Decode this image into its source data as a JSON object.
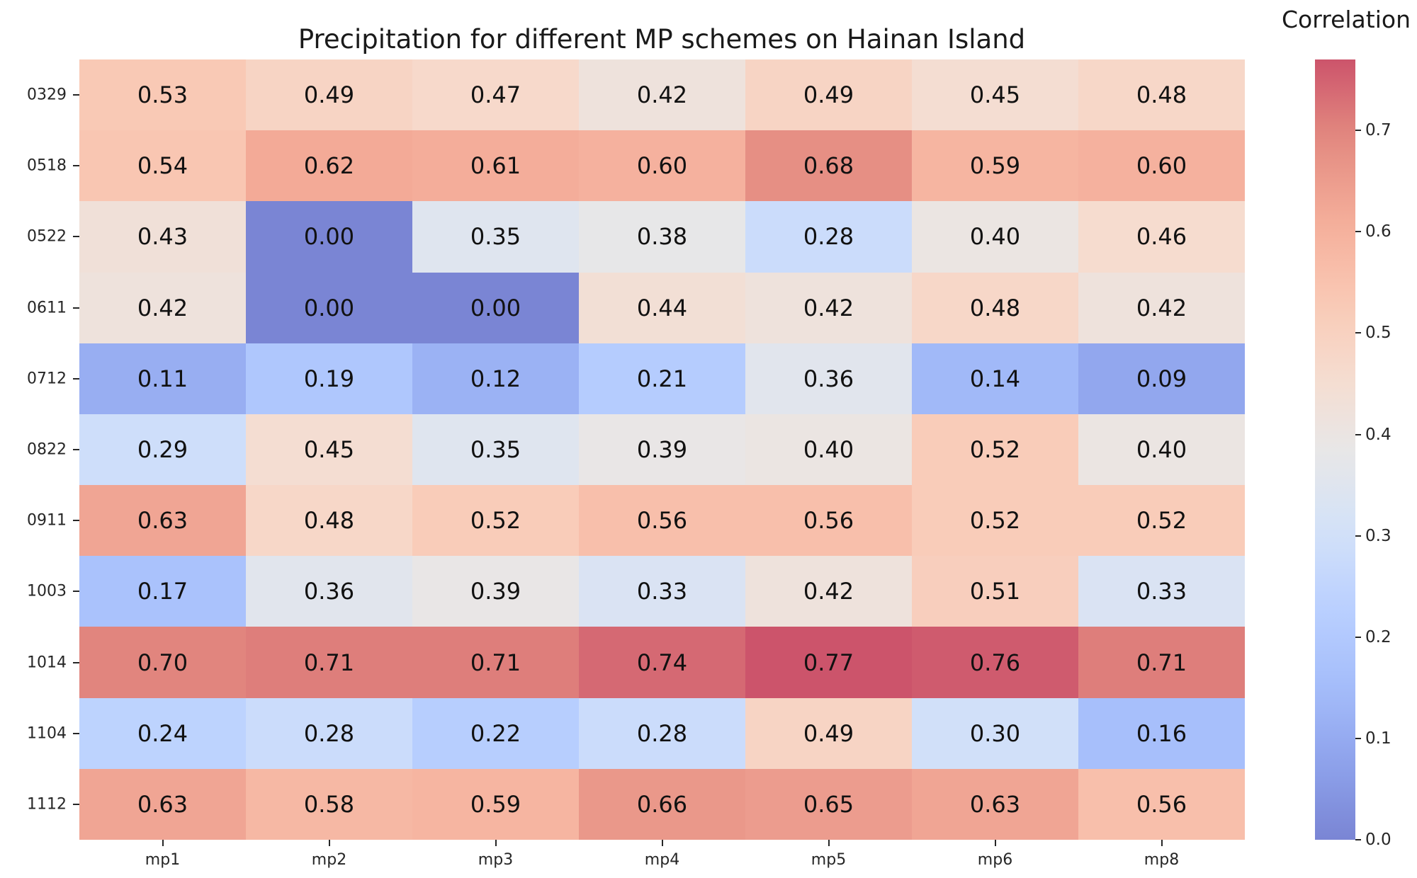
{
  "title": "Precipitation for different MP schemes on Hainan Island",
  "chart_data": {
    "type": "heatmap",
    "title": "Precipitation for different MP schemes on Hainan Island",
    "x_categories": [
      "mp1",
      "mp2",
      "mp3",
      "mp4",
      "mp5",
      "mp6",
      "mp8"
    ],
    "y_categories": [
      "0329",
      "0518",
      "0522",
      "0611",
      "0712",
      "0822",
      "0911",
      "1003",
      "1014",
      "1104",
      "1112"
    ],
    "values": [
      [
        0.53,
        0.49,
        0.47,
        0.42,
        0.49,
        0.45,
        0.48
      ],
      [
        0.54,
        0.62,
        0.61,
        0.6,
        0.68,
        0.59,
        0.6
      ],
      [
        0.43,
        0.0,
        0.35,
        0.38,
        0.28,
        0.4,
        0.46
      ],
      [
        0.42,
        0.0,
        0.0,
        0.44,
        0.42,
        0.48,
        0.42
      ],
      [
        0.11,
        0.19,
        0.12,
        0.21,
        0.36,
        0.14,
        0.09
      ],
      [
        0.29,
        0.45,
        0.35,
        0.39,
        0.4,
        0.52,
        0.4
      ],
      [
        0.63,
        0.48,
        0.52,
        0.56,
        0.56,
        0.52,
        0.52
      ],
      [
        0.17,
        0.36,
        0.39,
        0.33,
        0.42,
        0.51,
        0.33
      ],
      [
        0.7,
        0.71,
        0.71,
        0.74,
        0.77,
        0.76,
        0.71
      ],
      [
        0.24,
        0.28,
        0.22,
        0.28,
        0.49,
        0.3,
        0.16
      ],
      [
        0.63,
        0.58,
        0.59,
        0.66,
        0.65,
        0.63,
        0.56
      ]
    ],
    "vmin": 0.0,
    "vmax": 0.77,
    "colormap": "coolwarm",
    "annotation_decimals": 2,
    "grid": false,
    "colorbar_label": "Correlation",
    "colorbar_ticks": [
      0.0,
      0.1,
      0.2,
      0.3,
      0.4,
      0.5,
      0.6,
      0.7
    ],
    "colorbar_position": "right"
  }
}
